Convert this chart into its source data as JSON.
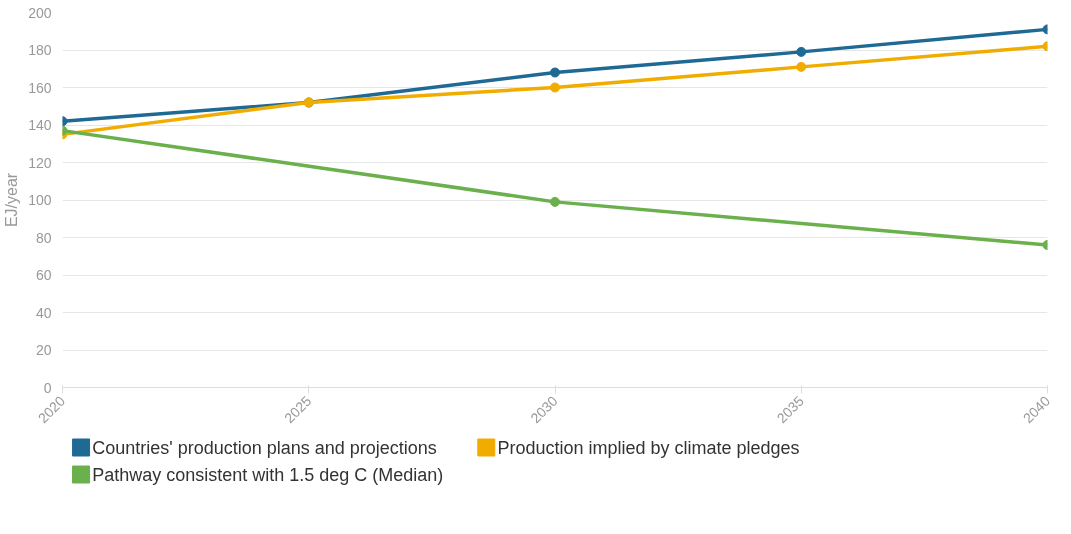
{
  "chart_data": {
    "type": "line",
    "ylabel": "EJ/year",
    "x": [
      2020,
      2025,
      2030,
      2035,
      2040
    ],
    "series": [
      {
        "name": "Countries' production plans and projections",
        "color": "#1f6a94",
        "values": [
          142,
          152,
          168,
          179,
          191
        ]
      },
      {
        "name": "Production implied by climate pledges",
        "color": "#f0ad00",
        "values": [
          135,
          152,
          160,
          171,
          182
        ]
      },
      {
        "name": "Pathway consistent with  1.5 deg C (Median)",
        "color": "#6ab04c",
        "x": [
          2020,
          2030,
          2040
        ],
        "values": [
          137,
          99,
          76
        ]
      }
    ],
    "xlim": [
      2020,
      2040
    ],
    "xticks": [
      2020,
      2025,
      2030,
      2035,
      2040
    ],
    "ylim": [
      0,
      200
    ],
    "yticks": [
      0,
      20,
      40,
      60,
      80,
      100,
      120,
      140,
      160,
      180,
      200
    ],
    "grid": "y",
    "legend": "bottom",
    "marker": "circle",
    "line_style": "solid"
  }
}
